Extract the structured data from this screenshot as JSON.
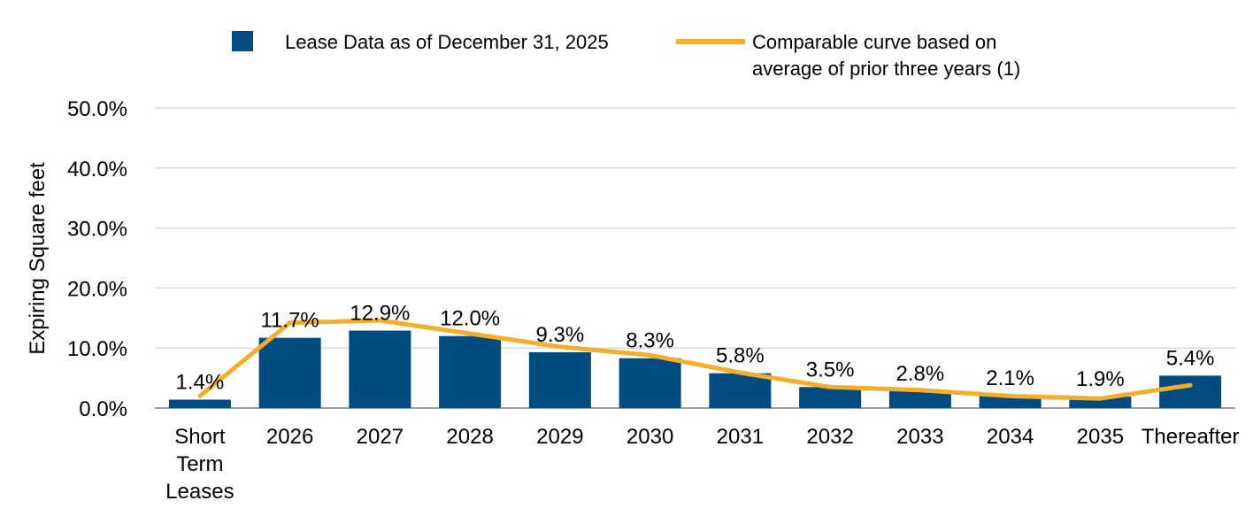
{
  "chart_data": {
    "type": "bar",
    "title": "",
    "xlabel": "",
    "ylabel": "Expiring Square feet",
    "ylim": [
      0,
      50
    ],
    "yticks": [
      "0.0%",
      "10.0%",
      "20.0%",
      "30.0%",
      "40.0%",
      "50.0%"
    ],
    "grid": true,
    "legend_position": "top",
    "categories": [
      [
        "Short",
        "Term",
        "Leases"
      ],
      [
        "2026"
      ],
      [
        "2027"
      ],
      [
        "2028"
      ],
      [
        "2029"
      ],
      [
        "2030"
      ],
      [
        "2031"
      ],
      [
        "2032"
      ],
      [
        "2033"
      ],
      [
        "2034"
      ],
      [
        "2035"
      ],
      [
        "Thereafter"
      ]
    ],
    "series": [
      {
        "name": "Lease Data as of December 31, 2025",
        "type": "bar",
        "color": "#004b80",
        "values": [
          1.4,
          11.7,
          12.9,
          12.0,
          9.3,
          8.3,
          5.8,
          3.5,
          2.8,
          2.1,
          1.9,
          5.4
        ],
        "labels": [
          "1.4%",
          "11.7%",
          "12.9%",
          "12.0%",
          "9.3%",
          "8.3%",
          "5.8%",
          "3.5%",
          "2.8%",
          "2.1%",
          "1.9%",
          "5.4%"
        ]
      },
      {
        "name_lines": [
          "Comparable curve based on",
          "average of prior three years (1)"
        ],
        "type": "line",
        "color": "#f5ae2a",
        "values": [
          2.0,
          14.2,
          14.6,
          12.4,
          10.2,
          8.8,
          5.9,
          3.5,
          3.0,
          2.0,
          1.6,
          3.8
        ]
      }
    ]
  }
}
